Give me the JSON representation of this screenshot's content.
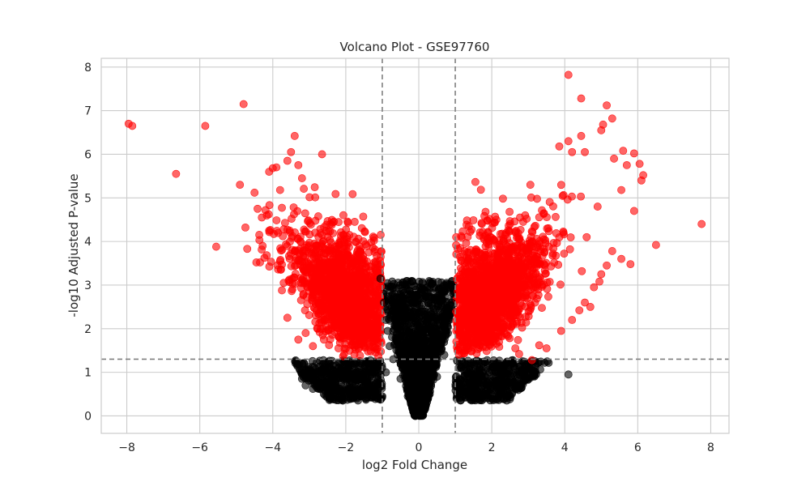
{
  "chart_data": {
    "type": "scatter",
    "title": "Volcano Plot - GSE97760",
    "xlabel": "log2 Fold Change",
    "ylabel": "-log10 Adjusted P-value",
    "xlim": [
      -8.7,
      8.5
    ],
    "ylim": [
      -0.4,
      8.2
    ],
    "xticks": [
      -8,
      -6,
      -4,
      -2,
      0,
      2,
      4,
      6,
      8
    ],
    "xtick_labels": [
      "−8",
      "−6",
      "−4",
      "−2",
      "0",
      "2",
      "4",
      "6",
      "8"
    ],
    "yticks": [
      0,
      1,
      2,
      3,
      4,
      5,
      6,
      7,
      8
    ],
    "ytick_labels": [
      "0",
      "1",
      "2",
      "3",
      "4",
      "5",
      "6",
      "7",
      "8"
    ],
    "grid": true,
    "legend": "none",
    "thresholds": {
      "log2fc": [
        -1,
        1
      ],
      "neg_log10_padj": 1.3
    },
    "colors": {
      "significant": "#ff0000",
      "not_significant": "#000000",
      "threshold_line": "#7f7f7f",
      "grid": "#cccccc",
      "frame": "#cccccc"
    },
    "marker_alpha": 0.6,
    "series": [
      {
        "color": "#ff0000",
        "points": [
          [
            -7.95,
            6.7
          ],
          [
            -7.85,
            6.65
          ],
          [
            -6.65,
            5.55
          ],
          [
            -5.85,
            6.65
          ],
          [
            -5.55,
            3.88
          ],
          [
            -4.8,
            7.15
          ],
          [
            -4.9,
            5.3
          ],
          [
            -4.75,
            4.32
          ],
          [
            -4.7,
            3.83
          ],
          [
            -4.5,
            5.12
          ],
          [
            -4.45,
            3.52
          ],
          [
            -4.35,
            3.52
          ],
          [
            -4.3,
            4.55
          ],
          [
            -4.2,
            4.72
          ],
          [
            -4.1,
            5.6
          ],
          [
            -4.0,
            5.68
          ],
          [
            -3.9,
            5.7
          ],
          [
            -3.8,
            5.18
          ],
          [
            -3.7,
            4.28
          ],
          [
            -3.6,
            5.85
          ],
          [
            -3.5,
            6.05
          ],
          [
            -3.4,
            6.42
          ],
          [
            -3.3,
            5.75
          ],
          [
            -3.2,
            5.45
          ],
          [
            -2.65,
            6.0
          ],
          [
            -3.75,
            2.88
          ],
          [
            -3.6,
            2.25
          ],
          [
            -3.3,
            1.75
          ],
          [
            -3.1,
            1.9
          ],
          [
            -2.9,
            1.6
          ],
          [
            -2.6,
            1.75
          ],
          [
            -2.2,
            1.55
          ],
          [
            -3.8,
            3.55
          ],
          [
            -3.7,
            3.05
          ],
          [
            -4.1,
            4.25
          ],
          [
            4.1,
            7.82
          ],
          [
            4.45,
            7.28
          ],
          [
            5.15,
            7.12
          ],
          [
            5.3,
            6.82
          ],
          [
            5.05,
            6.68
          ],
          [
            5.0,
            6.55
          ],
          [
            4.45,
            6.42
          ],
          [
            4.1,
            6.3
          ],
          [
            3.85,
            6.18
          ],
          [
            4.2,
            6.05
          ],
          [
            4.55,
            6.05
          ],
          [
            5.35,
            5.9
          ],
          [
            5.6,
            6.08
          ],
          [
            5.9,
            6.02
          ],
          [
            5.7,
            5.75
          ],
          [
            6.05,
            5.78
          ],
          [
            6.15,
            5.52
          ],
          [
            6.1,
            5.4
          ],
          [
            5.55,
            5.18
          ],
          [
            5.9,
            4.7
          ],
          [
            6.5,
            3.92
          ],
          [
            7.75,
            4.4
          ],
          [
            5.8,
            3.48
          ],
          [
            5.55,
            3.6
          ],
          [
            5.3,
            3.78
          ],
          [
            5.15,
            3.45
          ],
          [
            5.0,
            3.25
          ],
          [
            4.95,
            3.08
          ],
          [
            4.8,
            2.95
          ],
          [
            4.55,
            2.6
          ],
          [
            4.4,
            2.42
          ],
          [
            4.7,
            2.5
          ],
          [
            3.9,
            1.95
          ],
          [
            3.5,
            1.55
          ],
          [
            3.1,
            1.28
          ],
          [
            2.75,
            1.42
          ],
          [
            3.3,
            1.62
          ],
          [
            4.2,
            2.2
          ],
          [
            4.6,
            4.1
          ],
          [
            4.9,
            4.8
          ]
        ]
      },
      {
        "color": "#000000",
        "points": [
          [
            -3.2,
            0.85
          ],
          [
            -3.1,
            0.7
          ],
          [
            -2.9,
            0.62
          ],
          [
            -2.6,
            0.5
          ],
          [
            -2.45,
            0.42
          ],
          [
            -2.3,
            0.38
          ],
          [
            -2.1,
            0.36
          ],
          [
            -1.95,
            0.42
          ],
          [
            -1.8,
            0.48
          ],
          [
            -1.6,
            0.55
          ],
          [
            -2.5,
            0.9
          ],
          [
            -2.2,
            0.88
          ],
          [
            -1.9,
            1.05
          ],
          [
            -1.7,
            0.95
          ],
          [
            -1.45,
            0.7
          ],
          [
            -1.2,
            0.55
          ],
          [
            -1.0,
            0.45
          ],
          [
            -0.9,
            1.0
          ],
          [
            -0.85,
            1.95
          ],
          [
            -1.05,
            3.15
          ],
          [
            -0.95,
            2.6
          ],
          [
            -0.9,
            2.2
          ],
          [
            -0.8,
            1.6
          ],
          [
            -0.7,
            1.3
          ],
          [
            -0.5,
            0.85
          ],
          [
            -0.3,
            0.45
          ],
          [
            -0.15,
            0.2
          ],
          [
            0.0,
            0.02
          ],
          [
            0.15,
            0.22
          ],
          [
            0.3,
            0.5
          ],
          [
            0.5,
            0.9
          ],
          [
            0.7,
            1.4
          ],
          [
            0.8,
            1.9
          ],
          [
            0.9,
            2.6
          ],
          [
            0.85,
            2.3
          ],
          [
            1.2,
            0.55
          ],
          [
            1.5,
            0.65
          ],
          [
            1.8,
            0.7
          ],
          [
            2.1,
            0.78
          ],
          [
            2.4,
            0.85
          ],
          [
            2.7,
            0.95
          ],
          [
            2.95,
            1.12
          ],
          [
            2.55,
            1.22
          ],
          [
            2.25,
            1.15
          ],
          [
            1.9,
            1.05
          ],
          [
            4.1,
            0.95
          ]
        ]
      }
    ]
  }
}
